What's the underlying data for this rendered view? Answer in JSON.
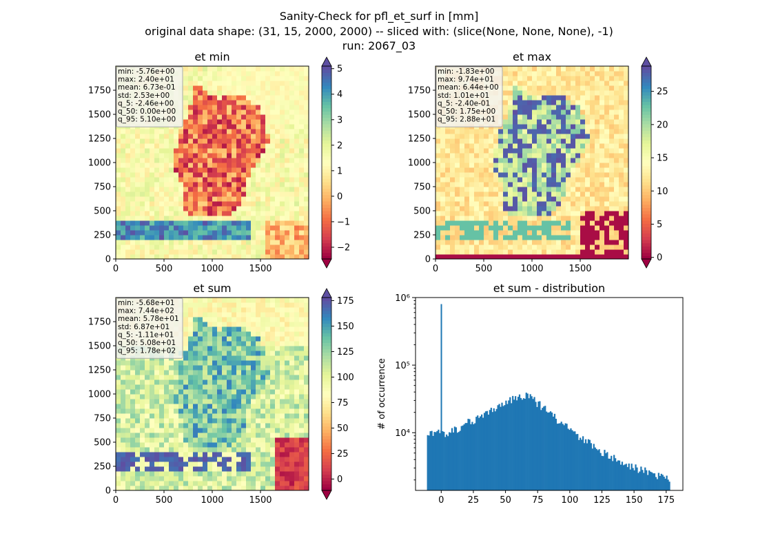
{
  "suptitle": {
    "line1": "Sanity-Check for pfl_et_surf in [mm]",
    "line2": "original data shape: (31, 15, 2000, 2000) -- sliced with: (slice(None, None, None), -1)",
    "line3": "run: 2067_03"
  },
  "chart_data": [
    {
      "type": "heatmap",
      "title": "et min",
      "colormap": "Spectral",
      "xlim": [
        0,
        2000
      ],
      "ylim": [
        0,
        2000
      ],
      "x_ticks": [
        "0",
        "500",
        "1000",
        "1500"
      ],
      "y_ticks": [
        "0",
        "250",
        "500",
        "750",
        "1000",
        "1250",
        "1500",
        "1750"
      ],
      "colorbar": {
        "range": [
          -2.46,
          5.1
        ],
        "ticks": [
          "−2",
          "−1",
          "0",
          "1",
          "2",
          "3",
          "4",
          "5"
        ],
        "extend": "both"
      },
      "stats": [
        "min: -5.76e+00",
        "max: 2.40e+01",
        "mean: 6.73e-01",
        "std: 2.53e+00",
        "q_5: -2.46e+00",
        "q_50: 0.00e+00",
        "q_95: 5.10e+00"
      ]
    },
    {
      "type": "heatmap",
      "title": "et max",
      "colormap": "Spectral",
      "xlim": [
        0,
        2000
      ],
      "ylim": [
        0,
        2000
      ],
      "x_ticks": [
        "0",
        "500",
        "1000",
        "1500"
      ],
      "y_ticks": [
        "0",
        "250",
        "500",
        "750",
        "1000",
        "1250",
        "1500",
        "1750"
      ],
      "colorbar": {
        "range": [
          -0.24,
          28.8
        ],
        "ticks": [
          "0",
          "5",
          "10",
          "15",
          "20",
          "25"
        ],
        "extend": "both"
      },
      "stats": [
        "min: -1.83e+00",
        "max: 9.74e+01",
        "mean: 6.44e+00",
        "std: 1.01e+01",
        "q_5: -2.40e-01",
        "q_50: 1.75e+00",
        "q_95: 2.88e+01"
      ]
    },
    {
      "type": "heatmap",
      "title": "et sum",
      "colormap": "Spectral",
      "xlim": [
        0,
        2000
      ],
      "ylim": [
        0,
        2000
      ],
      "x_ticks": [
        "0",
        "500",
        "1000",
        "1500"
      ],
      "y_ticks": [
        "0",
        "250",
        "500",
        "750",
        "1000",
        "1250",
        "1500",
        "1750"
      ],
      "colorbar": {
        "range": [
          -11.1,
          178
        ],
        "ticks": [
          "0",
          "25",
          "50",
          "75",
          "100",
          "125",
          "150",
          "175"
        ],
        "extend": "both"
      },
      "stats": [
        "min: -5.68e+01",
        "max: 7.44e+02",
        "mean: 5.78e+01",
        "std: 6.87e+01",
        "q_5: -1.11e+01",
        "q_50: 5.08e+01",
        "q_95: 1.78e+02"
      ]
    },
    {
      "type": "bar",
      "title": "et sum - distribution",
      "ylabel": "# of occurrence",
      "yscale": "log",
      "x_ticks": [
        "0",
        "25",
        "50",
        "75",
        "100",
        "125",
        "150",
        "175"
      ],
      "y_ticks": [
        "10⁴",
        "10⁵",
        "10⁶"
      ],
      "color": "#1f77b4",
      "spike": {
        "x": 0,
        "y": 800000
      },
      "bin_range": [
        -11.1,
        178
      ],
      "xlim": [
        -20,
        188
      ],
      "ylim": [
        1400,
        1000000
      ],
      "profile": [
        {
          "x": -11,
          "y": 9000
        },
        {
          "x": -5,
          "y": 10000
        },
        {
          "x": 1,
          "y": 9500
        },
        {
          "x": 10,
          "y": 11000
        },
        {
          "x": 20,
          "y": 14000
        },
        {
          "x": 30,
          "y": 17000
        },
        {
          "x": 40,
          "y": 22000
        },
        {
          "x": 50,
          "y": 28000
        },
        {
          "x": 60,
          "y": 34000
        },
        {
          "x": 66,
          "y": 37000
        },
        {
          "x": 75,
          "y": 27000
        },
        {
          "x": 85,
          "y": 19000
        },
        {
          "x": 100,
          "y": 11000
        },
        {
          "x": 115,
          "y": 7000
        },
        {
          "x": 130,
          "y": 4500
        },
        {
          "x": 150,
          "y": 3000
        },
        {
          "x": 165,
          "y": 2500
        },
        {
          "x": 178,
          "y": 2000
        }
      ]
    }
  ]
}
